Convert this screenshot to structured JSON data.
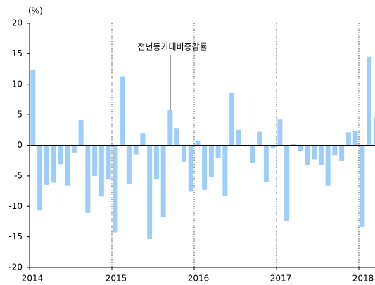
{
  "chart_data": {
    "type": "bar",
    "y_label": "(%)",
    "annotation": "전년동기대비증감률",
    "color": "#9dcdf9",
    "categories": [
      "2014",
      null,
      null,
      null,
      null,
      null,
      null,
      null,
      null,
      null,
      null,
      null,
      "2015",
      null,
      null,
      null,
      null,
      null,
      null,
      null,
      null,
      null,
      null,
      null,
      "2016",
      null,
      null,
      null,
      null,
      null,
      null,
      null,
      null,
      null,
      null,
      null,
      "2017",
      null,
      null,
      null,
      null,
      null,
      null,
      null,
      null,
      null,
      null,
      null,
      "2018",
      null,
      null
    ],
    "values": [
      12.4,
      -10.7,
      -6.5,
      -6.1,
      -3.1,
      -6.6,
      -1.2,
      4.2,
      -11.0,
      -5.0,
      -8.4,
      -5.6,
      -14.3,
      11.3,
      -6.4,
      -1.5,
      2.0,
      -15.4,
      -5.6,
      -11.7,
      5.8,
      2.8,
      -2.7,
      -7.6,
      0.8,
      -7.3,
      -5.2,
      -2.1,
      -8.3,
      8.6,
      2.5,
      0,
      -2.9,
      2.3,
      -6.0,
      -0.4,
      4.3,
      -12.4,
      0.2,
      -1.0,
      -3.2,
      -2.3,
      -3.2,
      -6.6,
      -1.6,
      -2.6,
      2.1,
      2.4,
      -13.3,
      14.5,
      4.6
    ],
    "annotation_index": 20,
    "ylim": [
      -20,
      20
    ],
    "yticks": [
      20,
      15,
      10,
      5,
      0,
      -5,
      -10,
      -15,
      -20
    ],
    "grid": false
  }
}
